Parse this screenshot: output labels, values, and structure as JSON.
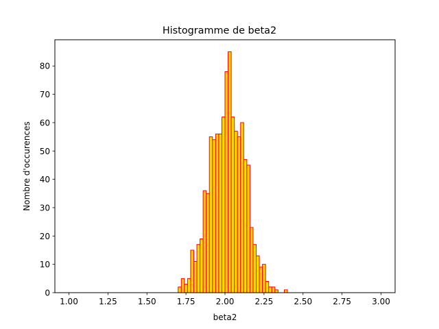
{
  "chart_data": {
    "type": "bar",
    "title": "Histogramme de beta2",
    "xlabel": "beta2",
    "ylabel": "Nombre d'occurences",
    "xlim": [
      0.91,
      3.09
    ],
    "ylim": [
      0,
      89.25
    ],
    "xticks": [
      "1.00",
      "1.25",
      "1.50",
      "1.75",
      "2.00",
      "2.25",
      "2.50",
      "2.75",
      "3.00"
    ],
    "xtick_values": [
      1.0,
      1.25,
      1.5,
      1.75,
      2.0,
      2.25,
      2.5,
      2.75,
      3.0
    ],
    "yticks": [
      "0",
      "10",
      "20",
      "30",
      "40",
      "50",
      "60",
      "70",
      "80"
    ],
    "ytick_values": [
      0,
      10,
      20,
      30,
      40,
      50,
      60,
      70,
      80
    ],
    "bin_start": 1.0,
    "bin_width": 0.02,
    "values": [
      0,
      0,
      0,
      0,
      0,
      0,
      0,
      0,
      0,
      0,
      0,
      0,
      0,
      0,
      0,
      0,
      0,
      0,
      0,
      0,
      0,
      0,
      0,
      0,
      0,
      0,
      0,
      0,
      0,
      0,
      0,
      0,
      0,
      0,
      0,
      2,
      5,
      3,
      5,
      15,
      11,
      17,
      19,
      36,
      35,
      55,
      54,
      56,
      56,
      62,
      78,
      85,
      62,
      57,
      55,
      60,
      47,
      45,
      23,
      17,
      13,
      9,
      10,
      4,
      2,
      2,
      1,
      0,
      0,
      1,
      0,
      0,
      0,
      0,
      0,
      0,
      0,
      0,
      0,
      0,
      0,
      0,
      0,
      0,
      0,
      0,
      0,
      0,
      0,
      0,
      0,
      0,
      0,
      0,
      0,
      0,
      0,
      0,
      0,
      0
    ],
    "grid": false,
    "colors": {
      "face": "#ffd700",
      "edge": "#ff0000"
    }
  }
}
